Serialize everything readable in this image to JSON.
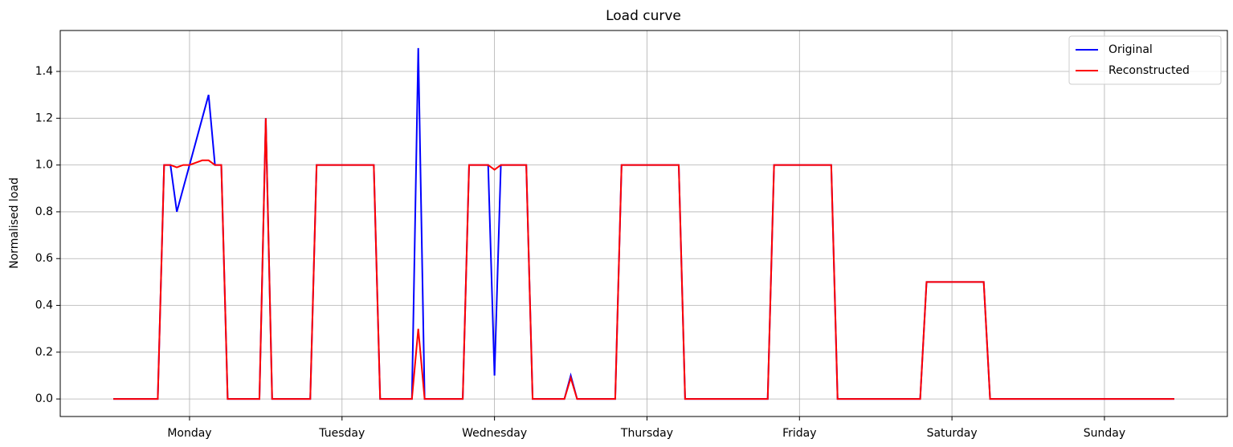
{
  "chart_data": {
    "type": "line",
    "title": "Load curve",
    "y_label": "Normalised load",
    "x": [
      0,
      1,
      2,
      3,
      4,
      5,
      6,
      7,
      8,
      9,
      10,
      11,
      12,
      13,
      14,
      15,
      16,
      17,
      18,
      19,
      20,
      21,
      22,
      23,
      24,
      25,
      26,
      27,
      28,
      29,
      30,
      31,
      32,
      33,
      34,
      35,
      36,
      37,
      38,
      39,
      40,
      41,
      42,
      43,
      44,
      45,
      46,
      47,
      48,
      49,
      50,
      51,
      52,
      53,
      54,
      55,
      56,
      57,
      58,
      59,
      60,
      61,
      62,
      63,
      64,
      65,
      66,
      67,
      68,
      69,
      70,
      71,
      72,
      73,
      74,
      75,
      76,
      77,
      78,
      79,
      80,
      81,
      82,
      83,
      84,
      85,
      86,
      87,
      88,
      89,
      90,
      91,
      92,
      93,
      94,
      95,
      96,
      97,
      98,
      99,
      100,
      101,
      102,
      103,
      104,
      105,
      106,
      107,
      108,
      109,
      110,
      111,
      112,
      113,
      114,
      115,
      116,
      117,
      118,
      119,
      120,
      121,
      122,
      123,
      124,
      125,
      126,
      127,
      128,
      129,
      130,
      131,
      132,
      133,
      134,
      135,
      136,
      137,
      138,
      139,
      140,
      141,
      142,
      143,
      144,
      145,
      146,
      147,
      148,
      149,
      150,
      151,
      152,
      153,
      154,
      155,
      156,
      157,
      158,
      159,
      160,
      161,
      162,
      163,
      164,
      165,
      166,
      167
    ],
    "series": [
      {
        "name": "Original",
        "color": "#0000ff",
        "values": [
          0,
          0,
          0,
          0,
          0,
          0,
          0,
          0,
          1,
          1,
          0.8,
          0.9,
          1,
          1.1,
          1.2,
          1.3,
          1,
          1,
          0,
          0,
          0,
          0,
          0,
          0,
          1.2,
          0,
          0,
          0,
          0,
          0,
          0,
          0,
          1,
          1,
          1,
          1,
          1,
          1,
          1,
          1,
          1,
          1,
          0,
          0,
          0,
          0,
          0,
          0,
          1.5,
          0,
          0,
          0,
          0,
          0,
          0,
          0,
          1,
          1,
          1,
          1,
          0.1,
          1,
          1,
          1,
          1,
          1,
          0,
          0,
          0,
          0,
          0,
          0,
          0.1,
          0,
          0,
          0,
          0,
          0,
          0,
          0,
          1,
          1,
          1,
          1,
          1,
          1,
          1,
          1,
          1,
          1,
          0,
          0,
          0,
          0,
          0,
          0,
          0,
          0,
          0,
          0,
          0,
          0,
          0,
          0,
          1,
          1,
          1,
          1,
          1,
          1,
          1,
          1,
          1,
          1,
          0,
          0,
          0,
          0,
          0,
          0,
          0,
          0,
          0,
          0,
          0,
          0,
          0,
          0,
          0.5,
          0.5,
          0.5,
          0.5,
          0.5,
          0.5,
          0.5,
          0.5,
          0.5,
          0.5,
          0,
          0,
          0,
          0,
          0,
          0,
          0,
          0,
          0,
          0,
          0,
          0,
          0,
          0,
          0,
          0,
          0,
          0,
          0,
          0,
          0,
          0,
          0,
          0,
          0,
          0,
          0,
          0,
          0,
          0
        ]
      },
      {
        "name": "Reconstructed",
        "color": "#ff0000",
        "values": [
          0,
          0,
          0,
          0,
          0,
          0,
          0,
          0,
          1,
          1,
          0.99,
          1,
          1,
          1.01,
          1.02,
          1.02,
          1,
          1,
          0,
          0,
          0,
          0,
          0,
          0,
          1.2,
          0,
          0,
          0,
          0,
          0,
          0,
          0,
          1,
          1,
          1,
          1,
          1,
          1,
          1,
          1,
          1,
          1,
          0,
          0,
          0,
          0,
          0,
          0,
          0.3,
          0,
          0,
          0,
          0,
          0,
          0,
          0,
          1,
          1,
          1,
          1,
          0.98,
          1,
          1,
          1,
          1,
          1,
          0,
          0,
          0,
          0,
          0,
          0,
          0.09,
          0,
          0,
          0,
          0,
          0,
          0,
          0,
          1,
          1,
          1,
          1,
          1,
          1,
          1,
          1,
          1,
          1,
          0,
          0,
          0,
          0,
          0,
          0,
          0,
          0,
          0,
          0,
          0,
          0,
          0,
          0,
          1,
          1,
          1,
          1,
          1,
          1,
          1,
          1,
          1,
          1,
          0,
          0,
          0,
          0,
          0,
          0,
          0,
          0,
          0,
          0,
          0,
          0,
          0,
          0,
          0.5,
          0.5,
          0.5,
          0.5,
          0.5,
          0.5,
          0.5,
          0.5,
          0.5,
          0.5,
          0,
          0,
          0,
          0,
          0,
          0,
          0,
          0,
          0,
          0,
          0,
          0,
          0,
          0,
          0,
          0,
          0,
          0,
          0,
          0,
          0,
          0,
          0,
          0,
          0,
          0,
          0,
          0,
          0,
          0
        ]
      }
    ],
    "xlim": [
      -8.35,
      175.35
    ],
    "xticks": [
      {
        "value": 12,
        "label": "Monday"
      },
      {
        "value": 36,
        "label": "Tuesday"
      },
      {
        "value": 60,
        "label": "Wednesday"
      },
      {
        "value": 84,
        "label": "Thursday"
      },
      {
        "value": 108,
        "label": "Friday"
      },
      {
        "value": 132,
        "label": "Saturday"
      },
      {
        "value": 156,
        "label": "Sunday"
      }
    ],
    "ylim": [
      -0.075,
      1.575
    ],
    "yticks": [
      {
        "value": 0,
        "label": "0.0"
      },
      {
        "value": 0.2,
        "label": "0.2"
      },
      {
        "value": 0.4,
        "label": "0.4"
      },
      {
        "value": 0.6,
        "label": "0.6"
      },
      {
        "value": 0.8,
        "label": "0.8"
      },
      {
        "value": 1,
        "label": "1.0"
      },
      {
        "value": 1.2,
        "label": "1.2"
      },
      {
        "value": 1.4,
        "label": "1.4"
      }
    ],
    "grid": true,
    "legend": "upper right"
  }
}
